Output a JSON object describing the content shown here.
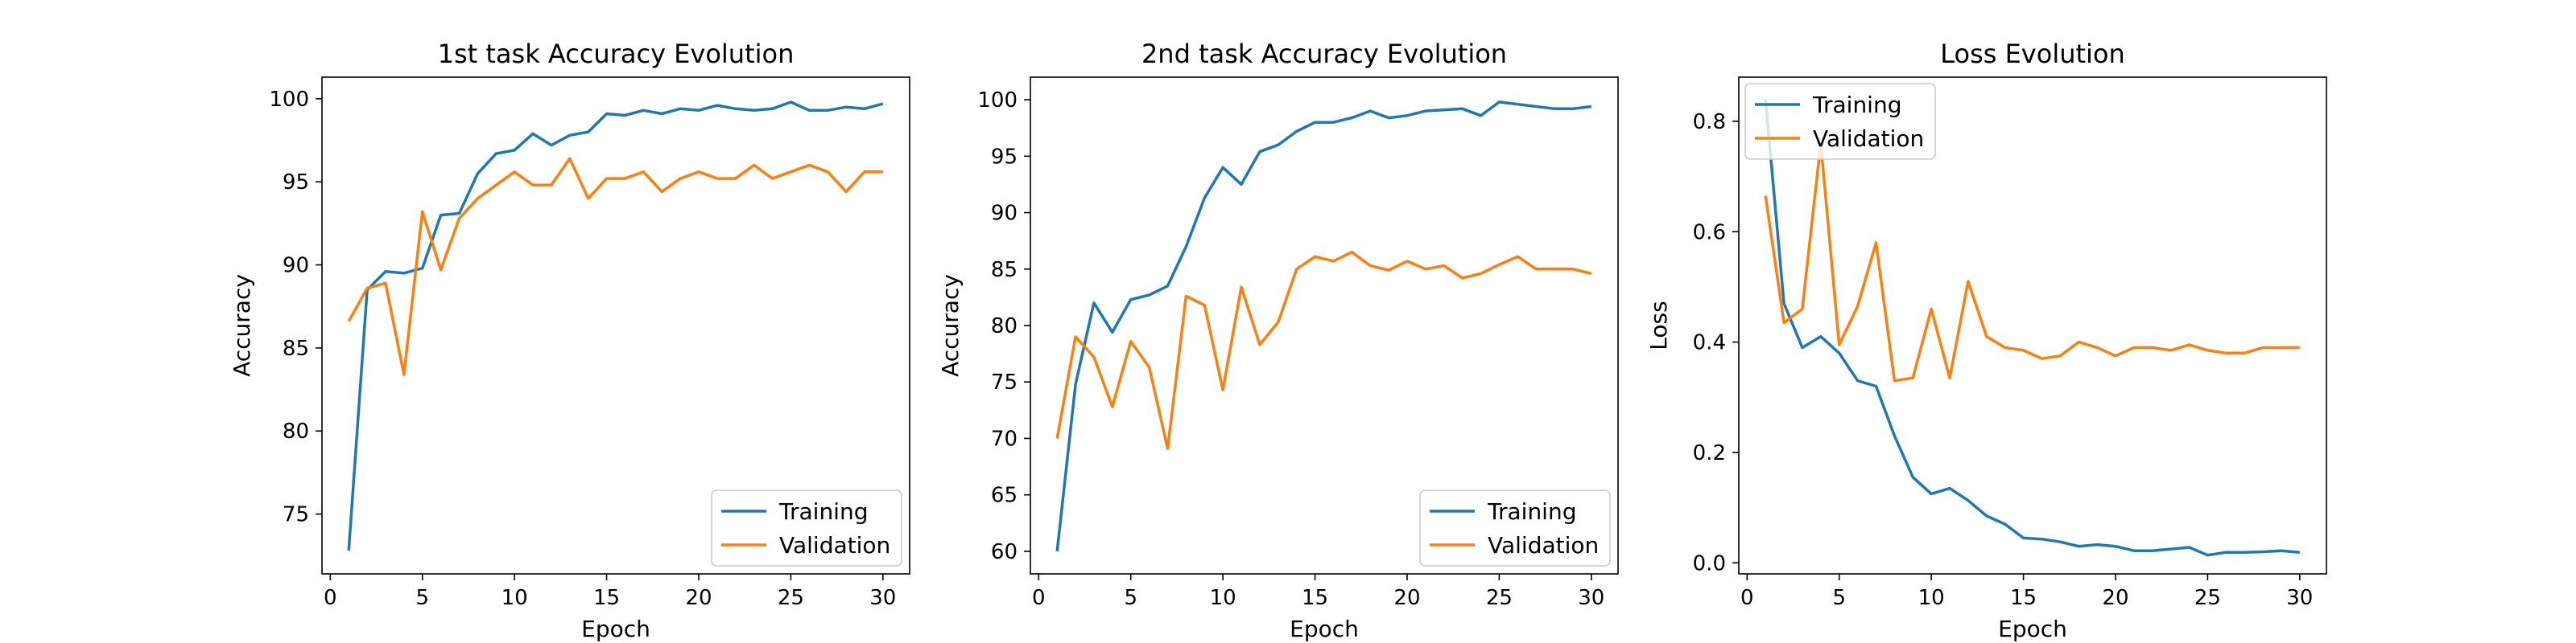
{
  "chart_data": [
    {
      "type": "line",
      "title": "1st task Accuracy Evolution",
      "xlabel": "Epoch",
      "ylabel": "Accuracy",
      "xlim": [
        -0.45,
        31.45
      ],
      "ylim": [
        71.4,
        101.3
      ],
      "xticks": [
        0,
        5,
        10,
        15,
        20,
        25,
        30
      ],
      "yticks": [
        75,
        80,
        85,
        90,
        95,
        100
      ],
      "legend": "lower right",
      "x": [
        1,
        2,
        3,
        4,
        5,
        6,
        7,
        8,
        9,
        10,
        11,
        12,
        13,
        14,
        15,
        16,
        17,
        18,
        19,
        20,
        21,
        22,
        23,
        24,
        25,
        26,
        27,
        28,
        29,
        30
      ],
      "series": [
        {
          "name": "Training",
          "color": "#1f77b4",
          "values": [
            72.8,
            88.5,
            89.6,
            89.5,
            89.8,
            93.0,
            93.1,
            95.5,
            96.7,
            96.9,
            97.9,
            97.2,
            97.8,
            98.0,
            99.1,
            99.0,
            99.3,
            99.1,
            99.4,
            99.3,
            99.6,
            99.4,
            99.3,
            99.4,
            99.8,
            99.3,
            99.3,
            99.5,
            99.4,
            99.7
          ]
        },
        {
          "name": "Validation",
          "color": "#ff7f0e",
          "values": [
            86.6,
            88.6,
            88.9,
            83.4,
            93.2,
            89.7,
            92.8,
            94.0,
            94.8,
            95.6,
            94.8,
            94.8,
            96.4,
            94.0,
            95.2,
            95.2,
            95.6,
            94.4,
            95.2,
            95.6,
            95.2,
            95.2,
            96.0,
            95.2,
            95.6,
            96.0,
            95.6,
            94.4,
            95.6,
            95.6
          ]
        }
      ]
    },
    {
      "type": "line",
      "title": "2nd task Accuracy Evolution",
      "xlabel": "Epoch",
      "ylabel": "Accuracy",
      "xlim": [
        -0.45,
        31.45
      ],
      "ylim": [
        58.0,
        102.0
      ],
      "xticks": [
        0,
        5,
        10,
        15,
        20,
        25,
        30
      ],
      "yticks": [
        60,
        65,
        70,
        75,
        80,
        85,
        90,
        95,
        100
      ],
      "legend": "lower right",
      "x": [
        1,
        2,
        3,
        4,
        5,
        6,
        7,
        8,
        9,
        10,
        11,
        12,
        13,
        14,
        15,
        16,
        17,
        18,
        19,
        20,
        21,
        22,
        23,
        24,
        25,
        26,
        27,
        28,
        29,
        30
      ],
      "series": [
        {
          "name": "Training",
          "color": "#1f77b4",
          "values": [
            60.0,
            74.8,
            82.0,
            79.4,
            82.3,
            82.7,
            83.5,
            87.0,
            91.3,
            94.0,
            92.5,
            95.4,
            96.0,
            97.2,
            98.0,
            98.0,
            98.4,
            99.0,
            98.4,
            98.6,
            99.0,
            99.1,
            99.2,
            98.6,
            99.8,
            99.6,
            99.4,
            99.2,
            99.2,
            99.4
          ]
        },
        {
          "name": "Validation",
          "color": "#ff7f0e",
          "values": [
            70.0,
            79.0,
            77.2,
            72.8,
            78.6,
            76.3,
            69.1,
            82.6,
            81.8,
            74.3,
            83.4,
            78.3,
            80.3,
            85.0,
            86.1,
            85.7,
            86.5,
            85.3,
            84.9,
            85.7,
            85.0,
            85.3,
            84.2,
            84.6,
            85.4,
            86.1,
            85.0,
            85.0,
            85.0,
            84.6
          ]
        }
      ]
    },
    {
      "type": "line",
      "title": "Loss Evolution",
      "xlabel": "Epoch",
      "ylabel": "Loss",
      "xlim": [
        -0.45,
        31.45
      ],
      "ylim": [
        -0.02,
        0.88
      ],
      "xticks": [
        0,
        5,
        10,
        15,
        20,
        25,
        30
      ],
      "yticks": [
        0.0,
        0.2,
        0.4,
        0.6,
        0.8
      ],
      "legend": "upper left",
      "x": [
        1,
        2,
        3,
        4,
        5,
        6,
        7,
        8,
        9,
        10,
        11,
        12,
        13,
        14,
        15,
        16,
        17,
        18,
        19,
        20,
        21,
        22,
        23,
        24,
        25,
        26,
        27,
        28,
        29,
        30
      ],
      "series": [
        {
          "name": "Training",
          "color": "#1f77b4",
          "values": [
            0.84,
            0.47,
            0.39,
            0.41,
            0.38,
            0.33,
            0.32,
            0.23,
            0.155,
            0.125,
            0.135,
            0.113,
            0.085,
            0.07,
            0.045,
            0.043,
            0.038,
            0.03,
            0.033,
            0.03,
            0.022,
            0.022,
            0.025,
            0.028,
            0.014,
            0.019,
            0.019,
            0.02,
            0.022,
            0.019
          ]
        },
        {
          "name": "Validation",
          "color": "#ff7f0e",
          "values": [
            0.665,
            0.435,
            0.46,
            0.76,
            0.395,
            0.465,
            0.58,
            0.33,
            0.335,
            0.46,
            0.335,
            0.51,
            0.41,
            0.39,
            0.385,
            0.37,
            0.375,
            0.4,
            0.39,
            0.375,
            0.39,
            0.39,
            0.385,
            0.395,
            0.385,
            0.38,
            0.38,
            0.39,
            0.39,
            0.39
          ]
        }
      ]
    }
  ]
}
